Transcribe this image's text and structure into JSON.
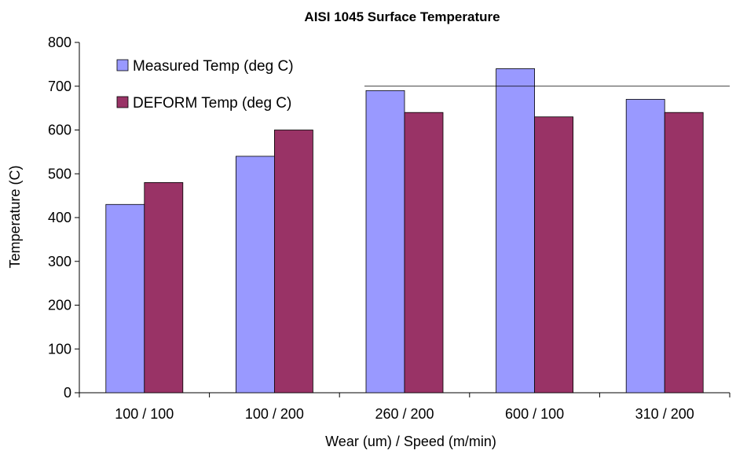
{
  "chart_data": {
    "type": "bar",
    "title": "AISI 1045 Surface Temperature",
    "xlabel": "Wear (um) / Speed (m/min)",
    "ylabel": "Temperature (C)",
    "categories": [
      "100 / 100",
      "100 / 200",
      "260 / 200",
      "600 / 100",
      "310 / 200"
    ],
    "series": [
      {
        "name": "Measured Temp (deg C)",
        "values": [
          430,
          540,
          690,
          740,
          670
        ],
        "color": "#9999ff"
      },
      {
        "name": "DEFORM Temp (deg C)",
        "values": [
          480,
          600,
          640,
          630,
          640
        ],
        "color": "#993366"
      }
    ],
    "ylim": [
      0,
      800
    ],
    "yticks": [
      0,
      100,
      200,
      300,
      400,
      500,
      600,
      700,
      800
    ],
    "grid": false,
    "legend_position": "top-left"
  }
}
